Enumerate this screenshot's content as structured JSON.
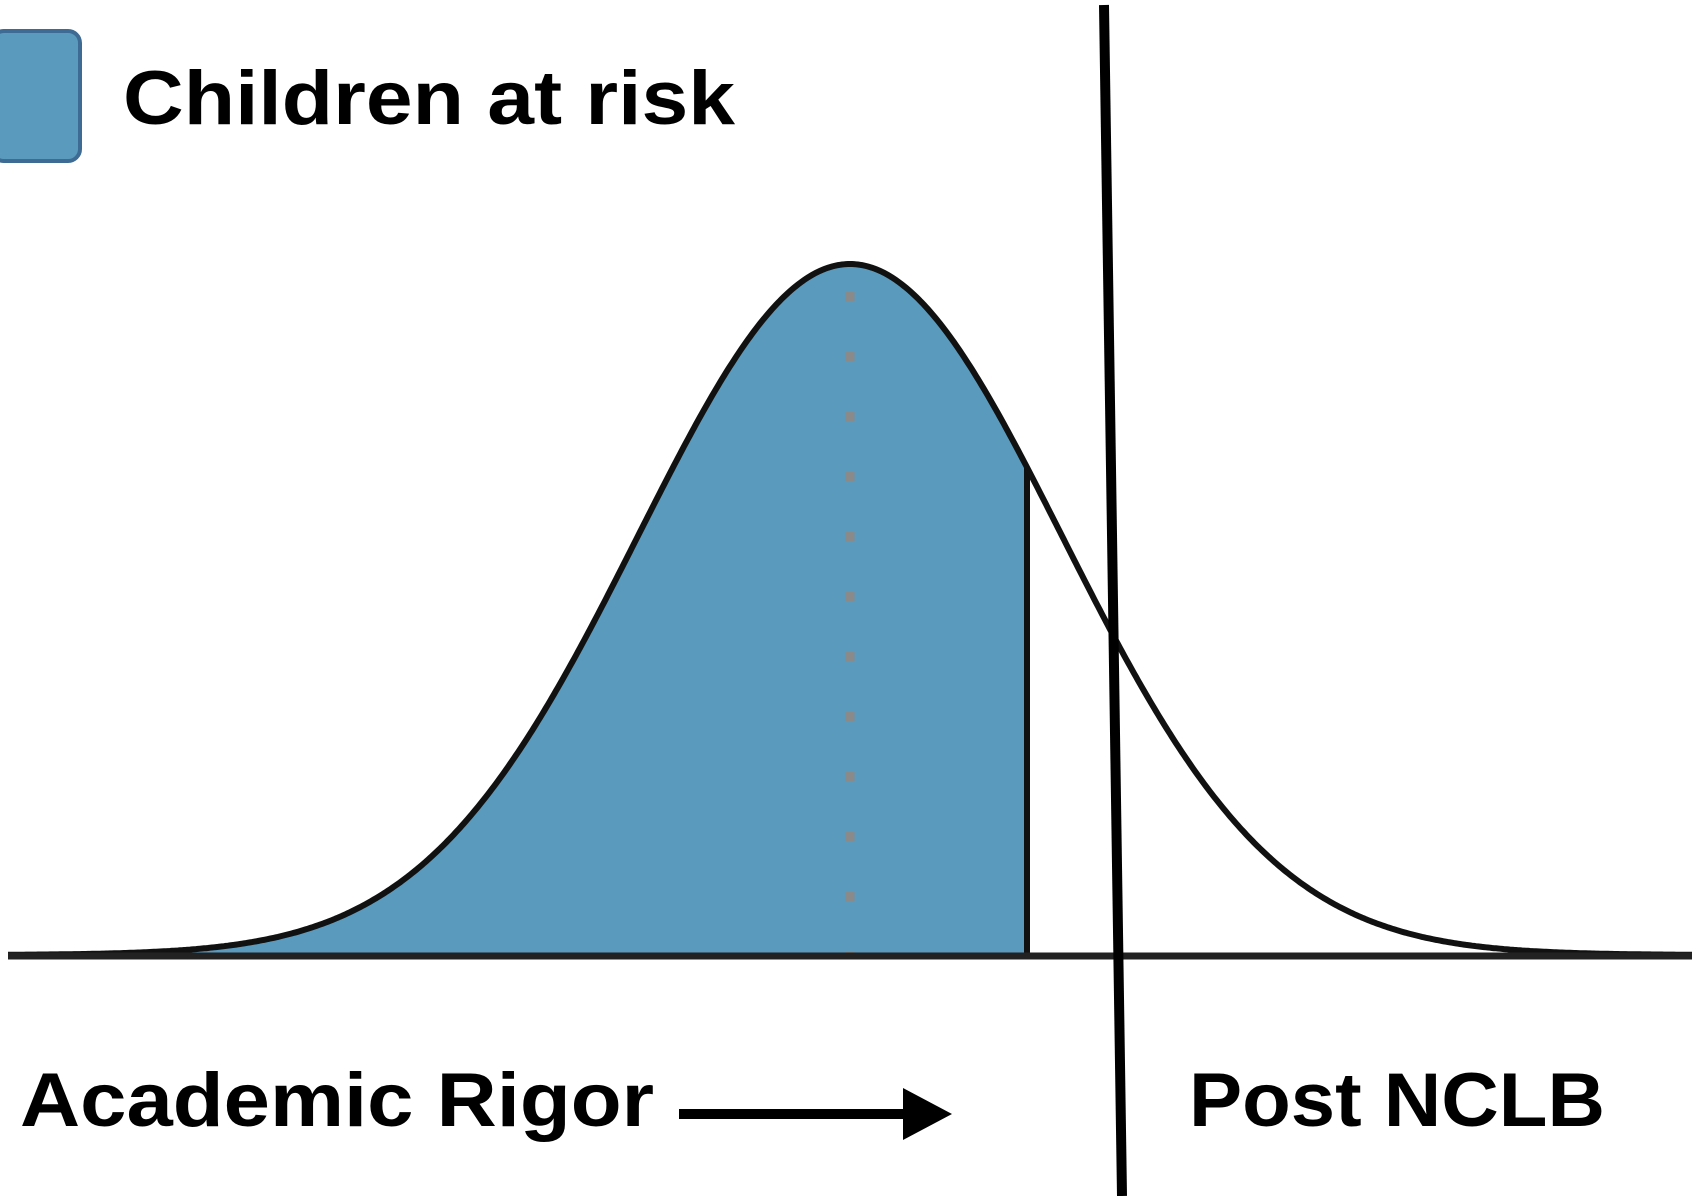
{
  "legend": {
    "label": "Children at risk"
  },
  "x_axis": {
    "label": "Academic Rigor"
  },
  "annotation": "Post NCLB"
}
